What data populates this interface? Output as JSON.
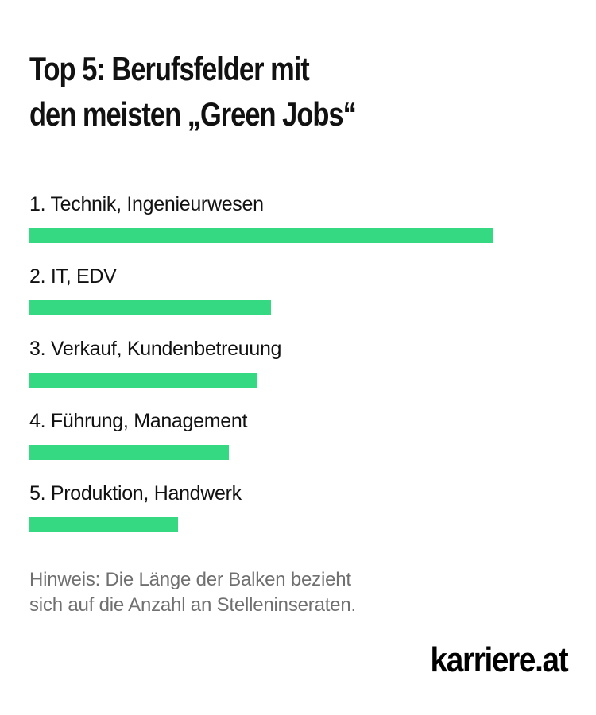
{
  "title": {
    "line1": "Top 5: Berufsfelder mit",
    "line2": "den meisten „Green Jobs“"
  },
  "colors": {
    "bar": "#34d982",
    "text": "#111111",
    "note": "#707070"
  },
  "chart_data": {
    "type": "bar",
    "orientation": "horizontal",
    "title": "Top 5: Berufsfelder mit den meisten „Green Jobs“",
    "categories": [
      "1. Technik, Ingenieurwesen",
      "2. IT, EDV",
      "3. Verkauf, Kundenbetreuung",
      "4. Führung, Management",
      "5. Produktion, Handwerk"
    ],
    "values": [
      100,
      52,
      49,
      43,
      32
    ],
    "xlabel": "",
    "ylabel": "",
    "value_scale": "relative bar length (top category = 100)",
    "grid": false,
    "legend": "none"
  },
  "note": {
    "line1": "Hinweis: Die Länge der Balken bezieht",
    "line2": "sich auf die Anzahl an Stelleninseraten."
  },
  "logo": "karriere.at"
}
